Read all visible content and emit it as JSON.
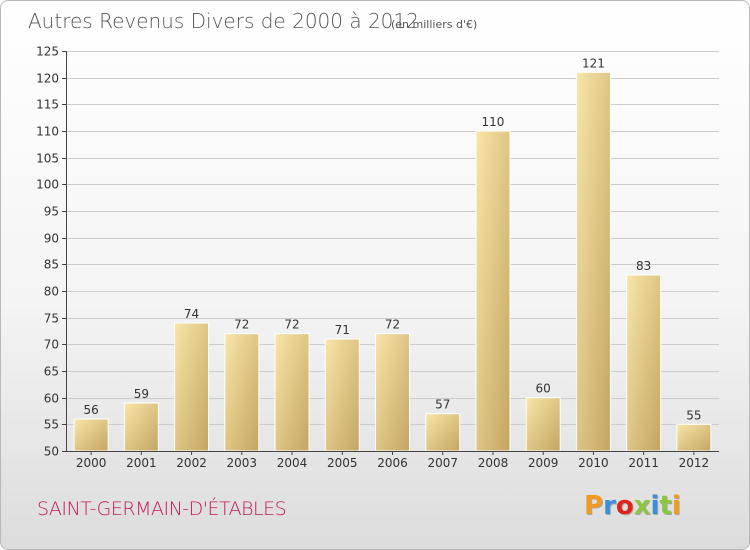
{
  "header": {
    "title": "Autres Revenus Divers de 2000 à 2012",
    "subtitle": "(en milliers d'€)"
  },
  "footer": {
    "commune": "SAINT-GERMAIN-D'ÉTABLES",
    "brand": "Proxiti",
    "brand_colors": [
      "#f39a1e",
      "#3b8fd6",
      "#e2231a",
      "#8cc63f",
      "#3b8fd6",
      "#8cc63f",
      "#f39a1e"
    ]
  },
  "colors": {
    "bar_light": "#f7e3a1",
    "bar_dark": "#c9ac66",
    "grid": "#cccccc",
    "axis": "#444444"
  },
  "chart_data": {
    "type": "bar",
    "title": "Autres Revenus Divers de 2000 à 2012",
    "subtitle": "(en milliers d'€)",
    "xlabel": "",
    "ylabel": "",
    "categories": [
      "2000",
      "2001",
      "2002",
      "2003",
      "2004",
      "2005",
      "2006",
      "2007",
      "2008",
      "2009",
      "2010",
      "2011",
      "2012"
    ],
    "values": [
      56,
      59,
      74,
      72,
      72,
      71,
      72,
      57,
      110,
      60,
      121,
      83,
      55
    ],
    "ylim": [
      50,
      125
    ],
    "yticks": [
      50,
      55,
      60,
      65,
      70,
      75,
      80,
      85,
      90,
      95,
      100,
      105,
      110,
      115,
      120,
      125
    ],
    "grid": true,
    "data_labels": true
  }
}
